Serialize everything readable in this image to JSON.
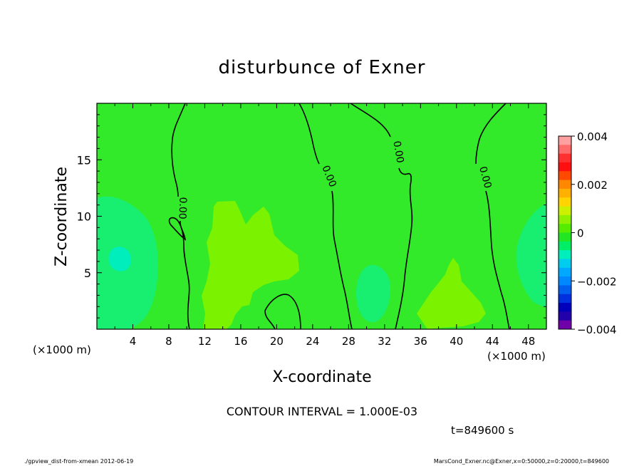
{
  "chart_data": {
    "type": "heatmap",
    "title": "disturbunce of Exner",
    "xlabel": "X-coordinate",
    "ylabel": "Z-coordinate",
    "x_unit": "(×1000 m)",
    "z_unit": "(×1000 m)",
    "xlim": [
      0,
      50
    ],
    "zlim": [
      0,
      20
    ],
    "x_ticks": [
      "4",
      "8",
      "12",
      "16",
      "20",
      "24",
      "28",
      "32",
      "36",
      "40",
      "44",
      "48"
    ],
    "z_ticks": [
      "5",
      "10",
      "15"
    ],
    "contour_interval_text": "CONTOUR INTERVAL = 1.000E-03",
    "contour_labels": [
      "0.00",
      "0.00",
      "0.00",
      "0.00"
    ],
    "time_text": "t=849600 s",
    "colorbar": {
      "min": -0.004,
      "max": 0.004,
      "tick_labels": [
        "0.004",
        "0.002",
        "0",
        "−0.002",
        "−0.004"
      ],
      "tick_values": [
        0.004,
        0.002,
        0,
        -0.002,
        -0.004
      ],
      "colors": [
        "#ffa0a0",
        "#ff6a6a",
        "#ff3030",
        "#ff1010",
        "#ff4800",
        "#ff8800",
        "#ffb000",
        "#ffd400",
        "#ccf000",
        "#8ff000",
        "#55ec00",
        "#22e622",
        "#00ee66",
        "#00eebb",
        "#00ccee",
        "#00a8ff",
        "#0088ff",
        "#0060ee",
        "#0030dd",
        "#0000bb",
        "#2200aa",
        "#7000a8"
      ]
    },
    "regions": [
      {
        "name": "background",
        "value": 0.0,
        "color": "#33ea2a"
      },
      {
        "name": "positive-center",
        "value": 0.0005,
        "color": "#7af200"
      },
      {
        "name": "positive-lower-right",
        "value": 0.0005,
        "color": "#7af200"
      },
      {
        "name": "negative-left",
        "value": -0.0005,
        "color": "#18ee70"
      },
      {
        "name": "negative-left-core",
        "value": -0.001,
        "color": "#00eebb"
      },
      {
        "name": "negative-right",
        "value": -0.0005,
        "color": "#18ee70"
      },
      {
        "name": "negative-lower-middle",
        "value": -0.0005,
        "color": "#18ee70"
      }
    ]
  },
  "footer": {
    "left": "./gpview_dist-from-xmean  2012-06-19",
    "right": "MarsCond_Exner.nc@Exner,x=0:50000,z=0:20000,t=849600"
  }
}
